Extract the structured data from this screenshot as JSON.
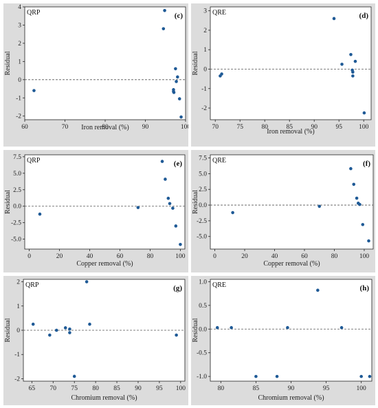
{
  "chart_data": [
    {
      "panel_label": "(c)",
      "tag": "QRP",
      "type": "scatter",
      "xlabel": "Iron removal (%)",
      "ylabel": "Residual",
      "xlim": [
        60,
        100
      ],
      "ylim": [
        -2.2,
        4
      ],
      "xticks": [
        60,
        70,
        80,
        90,
        100
      ],
      "yticks": [
        -2,
        -1,
        0,
        1,
        2,
        3,
        4
      ],
      "ref_y": 0,
      "points": [
        [
          62.3,
          -0.6
        ],
        [
          94.5,
          2.8
        ],
        [
          94.8,
          3.8
        ],
        [
          97.0,
          -0.55
        ],
        [
          97.0,
          -0.65
        ],
        [
          97.1,
          -0.7
        ],
        [
          97.5,
          0.6
        ],
        [
          97.7,
          -0.1
        ],
        [
          98.0,
          0.15
        ],
        [
          98.5,
          -1.05
        ],
        [
          98.9,
          -2.05
        ]
      ]
    },
    {
      "panel_label": "(d)",
      "tag": "QRE",
      "type": "scatter",
      "xlabel": "Iron removal (%)",
      "ylabel": "Residual",
      "xlim": [
        69,
        101.5
      ],
      "ylim": [
        -2.6,
        3.2
      ],
      "xticks": [
        70,
        75,
        80,
        85,
        90,
        95,
        100
      ],
      "yticks": [
        -2,
        -1,
        0,
        1,
        2,
        3
      ],
      "ref_y": 0,
      "points": [
        [
          71.0,
          -0.35
        ],
        [
          71.3,
          -0.25
        ],
        [
          94.0,
          2.6
        ],
        [
          95.6,
          0.25
        ],
        [
          97.4,
          0.75
        ],
        [
          97.7,
          -0.05
        ],
        [
          97.8,
          -0.15
        ],
        [
          97.8,
          -0.35
        ],
        [
          98.3,
          0.4
        ],
        [
          100.1,
          -2.25
        ]
      ]
    },
    {
      "panel_label": "(e)",
      "tag": "QRP",
      "type": "scatter",
      "xlabel": "Copper removal (%)",
      "ylabel": "Residual",
      "xlim": [
        -3,
        103
      ],
      "ylim": [
        -6.5,
        7.8
      ],
      "xticks": [
        0,
        20,
        40,
        60,
        80,
        100
      ],
      "yticks": [
        -5.0,
        -2.5,
        0.0,
        2.5,
        5.0,
        7.5
      ],
      "ytick_labels": [
        "-5.0",
        "-2.5",
        "0.0",
        "2.5",
        "5.0",
        "7.5"
      ],
      "ref_y": 0,
      "points": [
        [
          7.0,
          -1.2
        ],
        [
          72.0,
          -0.2
        ],
        [
          88.0,
          6.8
        ],
        [
          90.0,
          4.1
        ],
        [
          92.0,
          1.2
        ],
        [
          93.0,
          0.4
        ],
        [
          95.0,
          -0.3
        ],
        [
          97.0,
          -3.0
        ],
        [
          100.0,
          -5.8
        ]
      ]
    },
    {
      "panel_label": "(f)",
      "tag": "QRE",
      "type": "scatter",
      "xlabel": "Copper removal (%)",
      "ylabel": "Residual",
      "xlim": [
        -3,
        106
      ],
      "ylim": [
        -7,
        8
      ],
      "xticks": [
        0,
        20,
        40,
        60,
        80,
        100
      ],
      "yticks": [
        -5.0,
        -2.5,
        0.0,
        2.5,
        5.0,
        7.5
      ],
      "ytick_labels": [
        "-5.0",
        "-2.5",
        "0.0",
        "2.5",
        "5.0",
        "7.5"
      ],
      "ref_y": 0,
      "points": [
        [
          12.0,
          -1.2
        ],
        [
          70.0,
          -0.2
        ],
        [
          91.0,
          5.8
        ],
        [
          93.0,
          3.3
        ],
        [
          95.0,
          1.1
        ],
        [
          96.0,
          0.3
        ],
        [
          97.0,
          0.1
        ],
        [
          99.0,
          -3.1
        ],
        [
          103.0,
          -5.7
        ]
      ]
    },
    {
      "panel_label": "(g)",
      "tag": "QRP",
      "type": "scatter",
      "xlabel": "Chromium removal (%)",
      "ylabel": "Residual",
      "xlim": [
        63,
        101
      ],
      "ylim": [
        -2.1,
        2.1
      ],
      "xticks": [
        65,
        70,
        75,
        80,
        85,
        90,
        95,
        100
      ],
      "yticks": [
        -2,
        -1,
        0,
        1,
        2
      ],
      "ref_y": 0,
      "points": [
        [
          65.3,
          0.25
        ],
        [
          69.2,
          -0.2
        ],
        [
          70.8,
          0.0
        ],
        [
          72.9,
          0.1
        ],
        [
          73.9,
          0.05
        ],
        [
          73.9,
          -0.1
        ],
        [
          75.0,
          -1.9
        ],
        [
          77.9,
          2.0
        ],
        [
          78.6,
          0.25
        ],
        [
          99.0,
          -0.2
        ]
      ]
    },
    {
      "panel_label": "(h)",
      "tag": "QRE",
      "type": "scatter",
      "xlabel": "Chromium removal (%)",
      "ylabel": "Residual",
      "xlim": [
        78.5,
        101.5
      ],
      "ylim": [
        -1.1,
        1.05
      ],
      "xticks": [
        80,
        85,
        90,
        95,
        100
      ],
      "yticks": [
        -1.0,
        -0.5,
        0.0,
        0.5,
        1.0
      ],
      "ytick_labels": [
        "-1.0",
        "-0.5",
        "0.0",
        "0.5",
        "1.0"
      ],
      "ref_y": 0,
      "points": [
        [
          79.5,
          0.03
        ],
        [
          81.5,
          0.03
        ],
        [
          85.0,
          -1.0
        ],
        [
          88.0,
          -1.0
        ],
        [
          89.5,
          0.03
        ],
        [
          93.8,
          0.82
        ],
        [
          97.2,
          0.03
        ],
        [
          100.0,
          -1.0
        ],
        [
          101.2,
          -1.0
        ]
      ]
    }
  ]
}
